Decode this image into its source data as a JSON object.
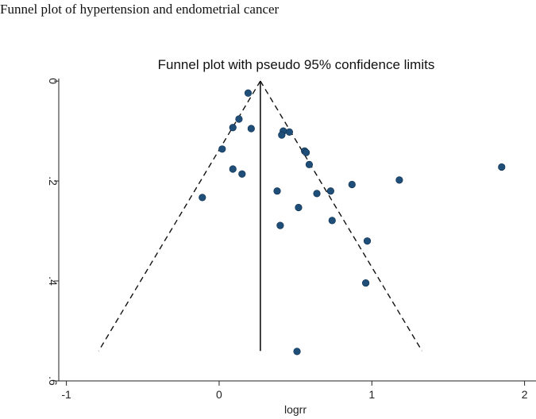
{
  "figure_caption": "Funnel plot of hypertension and endometrial cancer",
  "chart_data": {
    "type": "scatter",
    "subtype": "funnel",
    "title": "Funnel plot with pseudo 95% confidence limits",
    "xlabel": "logrr",
    "ylabel": "",
    "xlim": [
      -1.05,
      2.08
    ],
    "ylim": [
      0.6,
      -0.005
    ],
    "y_reversed": true,
    "x_ticks": [
      -1,
      0,
      1,
      2
    ],
    "x_tick_labels": [
      "-1",
      "0",
      "1",
      "2"
    ],
    "y_ticks": [
      0,
      0.2,
      0.4,
      0.6
    ],
    "y_tick_labels": [
      "0",
      ".2",
      ".4",
      ".6"
    ],
    "pooled_estimate": 0.27,
    "funnel_bottom_se": 0.54,
    "point_color": "#1f4e79",
    "points": [
      {
        "x": 0.19,
        "y": 0.024
      },
      {
        "x": 0.13,
        "y": 0.076
      },
      {
        "x": 0.09,
        "y": 0.093
      },
      {
        "x": 0.21,
        "y": 0.095
      },
      {
        "x": 0.42,
        "y": 0.1
      },
      {
        "x": 0.46,
        "y": 0.102
      },
      {
        "x": 0.41,
        "y": 0.108
      },
      {
        "x": 0.02,
        "y": 0.136
      },
      {
        "x": 0.56,
        "y": 0.14
      },
      {
        "x": 0.57,
        "y": 0.143
      },
      {
        "x": 0.59,
        "y": 0.167
      },
      {
        "x": 1.85,
        "y": 0.172
      },
      {
        "x": 0.09,
        "y": 0.176
      },
      {
        "x": 0.15,
        "y": 0.186
      },
      {
        "x": 1.18,
        "y": 0.198
      },
      {
        "x": 0.87,
        "y": 0.207
      },
      {
        "x": 0.38,
        "y": 0.22
      },
      {
        "x": 0.73,
        "y": 0.22
      },
      {
        "x": 0.64,
        "y": 0.225
      },
      {
        "x": -0.11,
        "y": 0.233
      },
      {
        "x": 0.52,
        "y": 0.253
      },
      {
        "x": 0.74,
        "y": 0.279
      },
      {
        "x": 0.4,
        "y": 0.289
      },
      {
        "x": 0.97,
        "y": 0.32
      },
      {
        "x": 0.96,
        "y": 0.404
      },
      {
        "x": 0.51,
        "y": 0.541
      }
    ]
  }
}
